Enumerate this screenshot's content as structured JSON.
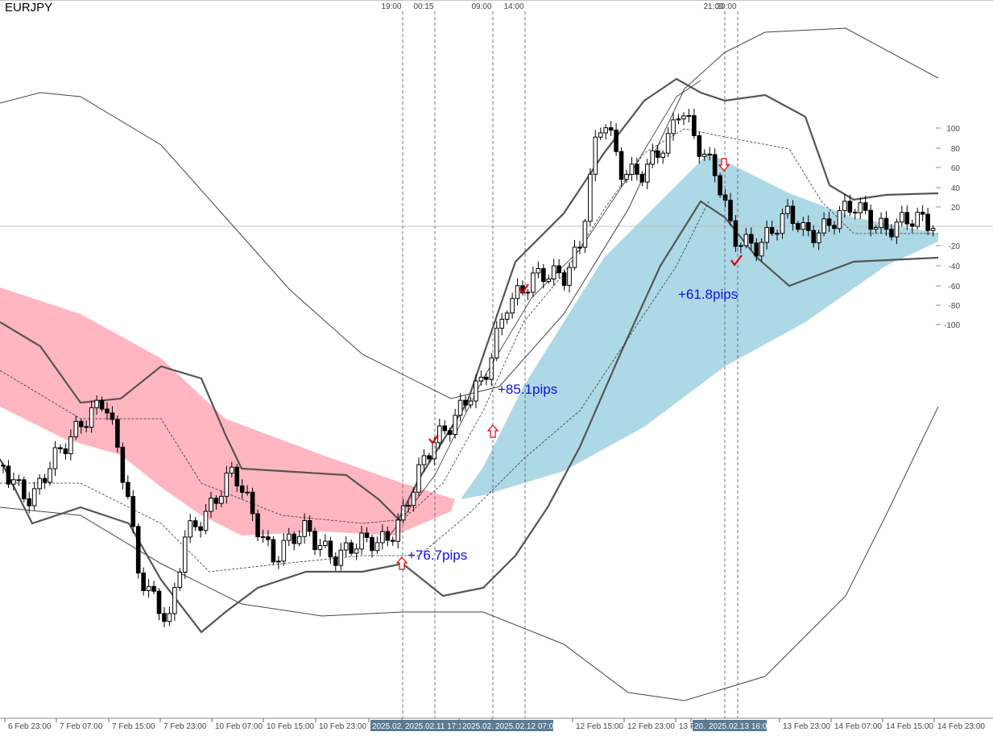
{
  "symbol": "EURJPY",
  "vline_labels": [
    "19:00",
    "00:15",
    "09:00",
    "14:00",
    "21:00",
    "20:00"
  ],
  "scale_labels": [
    "100",
    "80",
    "60",
    "40",
    "20",
    "-20",
    "-40",
    "-60",
    "-80",
    "-100"
  ],
  "time_labels": [
    "6 Feb 23:00",
    "7 Feb 07:00",
    "7 Feb 15:00",
    "7 Feb 23:00",
    "10 Feb 07:00",
    "10 Feb 15:00",
    "10 Feb 23:00",
    "2025.02.",
    "2025.02.11 17:1",
    "2025.02.",
    "2025.02.12 07:00",
    "12 Feb 15:00",
    "12 Feb 23:00",
    "13 F",
    "20.",
    "2025.02.13 16:00",
    "13 Feb 23:00",
    "14 Feb 07:00",
    "14 Feb 15:00",
    "14 Feb 23:00"
  ],
  "annotations": [
    "+76.7pips",
    "+85.1pips",
    "+61.8pips"
  ]
}
